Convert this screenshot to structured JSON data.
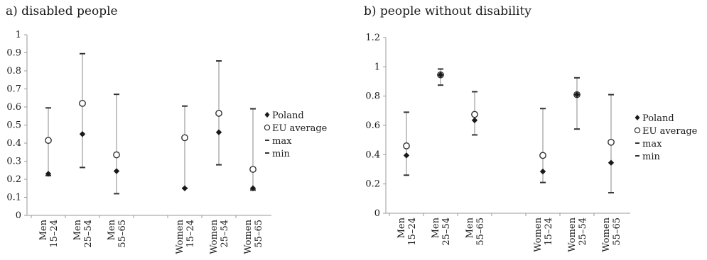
{
  "chart_data": [
    {
      "type": "scatter",
      "title": "a) disabled people",
      "categories": [
        [
          "Men",
          "15–24"
        ],
        [
          "Men",
          "25–54"
        ],
        [
          "Men",
          "55–65"
        ],
        [
          "",
          ""
        ],
        [
          "Women",
          "15–24"
        ],
        [
          "Women",
          "25–54"
        ],
        [
          "Women",
          "55–65"
        ]
      ],
      "ylim": [
        0,
        1
      ],
      "yticks": [
        "0",
        "0.1",
        "0.2",
        "0.3",
        "0.4",
        "0.5",
        "0.6",
        "0.7",
        "0.8",
        "0.9",
        "1"
      ],
      "series": [
        {
          "name": "Poland",
          "marker": "filled-diamond",
          "values": [
            0.23,
            0.45,
            0.245,
            null,
            0.15,
            0.46,
            0.15
          ]
        },
        {
          "name": "EU average",
          "marker": "open-circle",
          "values": [
            0.415,
            0.62,
            0.335,
            null,
            0.43,
            0.565,
            0.255
          ]
        },
        {
          "name": "max",
          "marker": "dash",
          "values": [
            0.595,
            0.895,
            0.67,
            null,
            0.605,
            0.855,
            0.59
          ]
        },
        {
          "name": "min",
          "marker": "dash",
          "values": [
            0.22,
            0.265,
            0.12,
            null,
            0.15,
            0.28,
            0.14
          ]
        }
      ],
      "grid": false,
      "legend": "right"
    },
    {
      "type": "scatter",
      "title": "b) people without disability",
      "categories": [
        [
          "Men",
          "15–24"
        ],
        [
          "Men",
          "25–54"
        ],
        [
          "Men",
          "55–65"
        ],
        [
          "",
          ""
        ],
        [
          "Women",
          "15–24"
        ],
        [
          "Women",
          "25–54"
        ],
        [
          "Women",
          "55–65"
        ]
      ],
      "ylim": [
        0,
        1.2
      ],
      "yticks": [
        "0",
        "0.2",
        "0.4",
        "0.6",
        "0.8",
        "1",
        "1.2"
      ],
      "series": [
        {
          "name": "Poland",
          "marker": "filled-diamond",
          "values": [
            0.395,
            0.945,
            0.635,
            null,
            0.285,
            0.81,
            0.345
          ]
        },
        {
          "name": "EU average",
          "marker": "open-circle",
          "values": [
            0.46,
            0.945,
            0.675,
            null,
            0.395,
            0.81,
            0.485
          ]
        },
        {
          "name": "max",
          "marker": "dash",
          "values": [
            0.69,
            0.985,
            0.83,
            null,
            0.715,
            0.925,
            0.81
          ]
        },
        {
          "name": "min",
          "marker": "dash",
          "values": [
            0.26,
            0.875,
            0.535,
            null,
            0.21,
            0.575,
            0.14
          ]
        }
      ],
      "grid": false,
      "legend": "right"
    }
  ]
}
